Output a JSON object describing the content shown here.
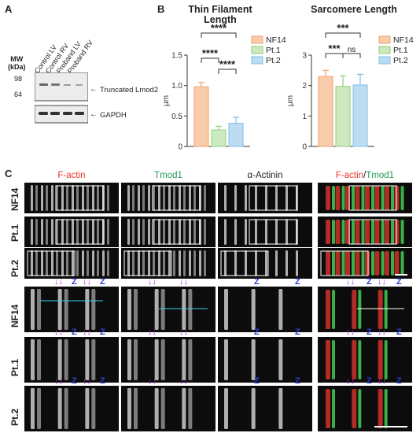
{
  "panels": {
    "a": "A",
    "b": "B",
    "c": "C"
  },
  "blot": {
    "mw_label": "MW\n(kDa)",
    "mw_line1": "MW",
    "mw_line2": "(kDa)",
    "mw_markers": [
      "98",
      "64"
    ],
    "lanes": [
      "Control LV",
      "Control RV",
      "Proband LV",
      "Proband RV"
    ],
    "bands": [
      "Truncated Lmod2",
      "GAPDH"
    ]
  },
  "chart_data": [
    {
      "type": "bar",
      "title": "Thin Filament Length",
      "ylabel": "μm",
      "ylim": [
        0,
        1.5
      ],
      "yticks": [
        "0",
        "0.5",
        "1.0",
        "1.5"
      ],
      "categories": [
        "NF14",
        "Pt.1",
        "Pt.2"
      ],
      "values": [
        0.98,
        0.27,
        0.38
      ],
      "errors": [
        0.07,
        0.06,
        0.1
      ],
      "colors": [
        "#f9ccab",
        "#cce9c0",
        "#bcdcf2"
      ],
      "edge_colors": [
        "#f0a26e",
        "#8fcf79",
        "#7fbce8"
      ],
      "significance": [
        "****",
        "****",
        "****"
      ],
      "legend": [
        "NF14",
        "Pt.1",
        "Pt.2"
      ]
    },
    {
      "type": "bar",
      "title": "Sarcomere Length",
      "ylabel": "μm",
      "ylim": [
        0,
        3
      ],
      "yticks": [
        "0",
        "1",
        "2",
        "3"
      ],
      "categories": [
        "NF14",
        "Pt.1",
        "Pt.2"
      ],
      "values": [
        2.3,
        1.97,
        2.02
      ],
      "errors": [
        0.2,
        0.35,
        0.35
      ],
      "colors": [
        "#f9ccab",
        "#cce9c0",
        "#bcdcf2"
      ],
      "edge_colors": [
        "#f0a26e",
        "#8fcf79",
        "#7fbce8"
      ],
      "significance": [
        "***",
        "***",
        "ns"
      ],
      "legend": [
        "NF14",
        "Pt.1",
        "Pt.2"
      ]
    }
  ],
  "micrographs": {
    "channels": [
      "F-actin",
      "Tmod1",
      "α-Actinin"
    ],
    "merge_label_a": "F-actin",
    "merge_label_sep": "/",
    "merge_label_b": "Tmod1",
    "rows": [
      "NF14",
      "Pt.1",
      "Pt.2"
    ],
    "z": "Z",
    "colors": {
      "red": "#e8382c",
      "green": "#1f9a53",
      "arrow": "#b23be8",
      "z": "#2b3fd1",
      "cyan": "#3fd3e8"
    }
  }
}
